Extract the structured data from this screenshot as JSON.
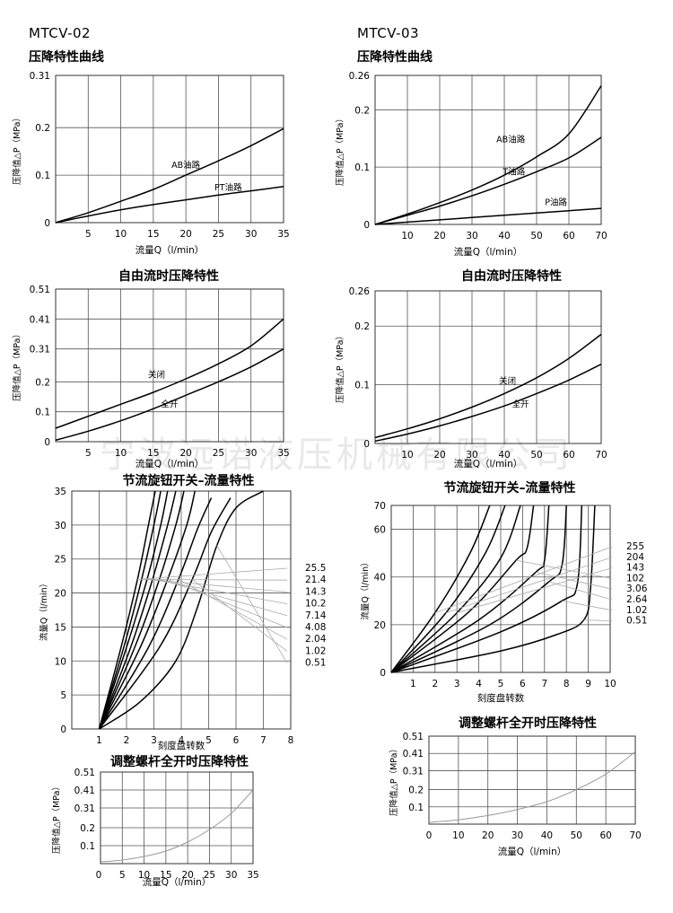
{
  "watermark": "宁波远诺液压机械有限公司",
  "chart_data": [
    {
      "id": "c1",
      "type": "line",
      "model": "MTCV-02",
      "title": "压降特性曲线",
      "xlabel": "流量Q（l/min）",
      "ylabel": "压降值△P（MPa）",
      "xlim": [
        0,
        35
      ],
      "ylim": [
        0,
        0.31
      ],
      "xticks": [
        5,
        10,
        15,
        20,
        25,
        30,
        35
      ],
      "yticks": [
        0,
        0.1,
        0.2,
        0.31
      ],
      "ytick_labels": [
        "0",
        "0.1",
        "0.2",
        "0.31"
      ],
      "grid": true,
      "series": [
        {
          "name": "AB油路",
          "points": [
            [
              0,
              0
            ],
            [
              5,
              0.021
            ],
            [
              10,
              0.045
            ],
            [
              15,
              0.07
            ],
            [
              20,
              0.1
            ],
            [
              25,
              0.13
            ],
            [
              30,
              0.162
            ],
            [
              35,
              0.198
            ]
          ],
          "label_at": [
            20,
            0.115
          ]
        },
        {
          "name": "PT油路",
          "points": [
            [
              0,
              0
            ],
            [
              5,
              0.014
            ],
            [
              10,
              0.027
            ],
            [
              15,
              0.038
            ],
            [
              20,
              0.048
            ],
            [
              25,
              0.058
            ],
            [
              30,
              0.067
            ],
            [
              35,
              0.076
            ]
          ],
          "label_at": [
            26.5,
            0.068
          ]
        }
      ]
    },
    {
      "id": "c2",
      "type": "line",
      "model": "MTCV-03",
      "title": "压降特性曲线",
      "xlabel": "流量Q（l/min）",
      "ylabel": "压降值△P（MPa）",
      "xlim": [
        0,
        70
      ],
      "ylim": [
        0,
        0.26
      ],
      "xticks": [
        10,
        20,
        30,
        40,
        50,
        60,
        70
      ],
      "yticks": [
        0,
        0.1,
        0.2,
        0.26
      ],
      "ytick_labels": [
        "0",
        "0.1",
        "0.2",
        "0.26"
      ],
      "grid": true,
      "series": [
        {
          "name": "AB油路",
          "points": [
            [
              0,
              0
            ],
            [
              10,
              0.018
            ],
            [
              20,
              0.038
            ],
            [
              30,
              0.06
            ],
            [
              40,
              0.086
            ],
            [
              50,
              0.118
            ],
            [
              60,
              0.158
            ],
            [
              70,
              0.242
            ]
          ],
          "label_at": [
            42,
            0.143
          ]
        },
        {
          "name": "T油路",
          "points": [
            [
              0,
              0
            ],
            [
              10,
              0.016
            ],
            [
              20,
              0.032
            ],
            [
              30,
              0.05
            ],
            [
              40,
              0.07
            ],
            [
              50,
              0.092
            ],
            [
              60,
              0.116
            ],
            [
              70,
              0.152
            ]
          ],
          "label_at": [
            43,
            0.087
          ]
        },
        {
          "name": "P油路",
          "points": [
            [
              0,
              0
            ],
            [
              10,
              0.004
            ],
            [
              20,
              0.008
            ],
            [
              30,
              0.012
            ],
            [
              40,
              0.016
            ],
            [
              50,
              0.02
            ],
            [
              60,
              0.024
            ],
            [
              70,
              0.028
            ]
          ],
          "label_at": [
            56,
            0.034
          ]
        }
      ]
    },
    {
      "id": "c3",
      "type": "line",
      "title": "自由流时压降特性",
      "xlabel": "流量Q（l/min）",
      "ylabel": "压降值△P（MPa）",
      "xlim": [
        0,
        35
      ],
      "ylim": [
        0,
        0.51
      ],
      "xticks": [
        5,
        10,
        15,
        20,
        25,
        30,
        35
      ],
      "yticks": [
        0,
        0.1,
        0.2,
        0.31,
        0.41,
        0.51
      ],
      "ytick_labels": [
        "0",
        "0.1",
        "0.2",
        "0.31",
        "0.41",
        "0.51"
      ],
      "grid": true,
      "series": [
        {
          "name": "关闭",
          "points": [
            [
              0,
              0.045
            ],
            [
              5,
              0.085
            ],
            [
              10,
              0.125
            ],
            [
              15,
              0.165
            ],
            [
              20,
              0.21
            ],
            [
              25,
              0.26
            ],
            [
              30,
              0.32
            ],
            [
              35,
              0.41
            ]
          ],
          "label_at": [
            15.5,
            0.215
          ]
        },
        {
          "name": "全开",
          "points": [
            [
              0,
              0.005
            ],
            [
              5,
              0.035
            ],
            [
              10,
              0.07
            ],
            [
              15,
              0.11
            ],
            [
              20,
              0.155
            ],
            [
              25,
              0.2
            ],
            [
              30,
              0.25
            ],
            [
              35,
              0.31
            ]
          ],
          "label_at": [
            17.5,
            0.115
          ]
        }
      ]
    },
    {
      "id": "c4",
      "type": "line",
      "title": "自由流时压降特性",
      "xlabel": "流量Q（l/min）",
      "ylabel": "压降值△P（MPa）",
      "xlim": [
        0,
        70
      ],
      "ylim": [
        0,
        0.26
      ],
      "xticks": [
        10,
        20,
        30,
        40,
        50,
        60,
        70
      ],
      "yticks": [
        0,
        0.1,
        0.2,
        0.26
      ],
      "ytick_labels": [
        "0",
        "0.1",
        "0.2",
        "0.26"
      ],
      "grid": true,
      "series": [
        {
          "name": "关闭",
          "points": [
            [
              0,
              0.01
            ],
            [
              10,
              0.025
            ],
            [
              20,
              0.042
            ],
            [
              30,
              0.062
            ],
            [
              40,
              0.085
            ],
            [
              50,
              0.112
            ],
            [
              60,
              0.145
            ],
            [
              70,
              0.186
            ]
          ],
          "label_at": [
            41,
            0.102
          ]
        },
        {
          "name": "全开",
          "points": [
            [
              0,
              0.004
            ],
            [
              10,
              0.016
            ],
            [
              20,
              0.03
            ],
            [
              30,
              0.046
            ],
            [
              40,
              0.064
            ],
            [
              50,
              0.085
            ],
            [
              60,
              0.108
            ],
            [
              70,
              0.135
            ]
          ],
          "label_at": [
            45,
            0.062
          ]
        }
      ]
    },
    {
      "id": "c5",
      "type": "line",
      "title": "节流旋钮开关–流量特性",
      "xlabel": "刻度盘转数",
      "ylabel": "流量Q（l/min）",
      "xlim": [
        0,
        8
      ],
      "ylim": [
        0,
        35
      ],
      "xticks": [
        1,
        2,
        3,
        4,
        5,
        6,
        7,
        8
      ],
      "yticks": [
        0,
        5,
        10,
        15,
        20,
        25,
        30,
        35
      ],
      "grid": true,
      "legend_labels": [
        "25.5",
        "21.4",
        "14.3",
        "10.2",
        "7.14",
        "4.08",
        "2.04",
        "1.02",
        "0.51"
      ],
      "series": [
        {
          "name": "25.5",
          "points": [
            [
              1,
              0
            ],
            [
              1.8,
              12
            ],
            [
              2.4,
              22
            ],
            [
              2.8,
              30
            ],
            [
              3.05,
              35
            ]
          ]
        },
        {
          "name": "21.4",
          "points": [
            [
              1,
              0
            ],
            [
              1.9,
              12
            ],
            [
              2.55,
              22
            ],
            [
              3.0,
              30
            ],
            [
              3.25,
              35
            ]
          ]
        },
        {
          "name": "14.3",
          "points": [
            [
              1,
              0
            ],
            [
              2.0,
              12
            ],
            [
              2.75,
              22
            ],
            [
              3.25,
              30
            ],
            [
              3.5,
              35
            ]
          ]
        },
        {
          "name": "10.2",
          "points": [
            [
              1,
              0
            ],
            [
              2.15,
              12
            ],
            [
              2.95,
              22
            ],
            [
              3.5,
              30
            ],
            [
              3.8,
              35
            ]
          ]
        },
        {
          "name": "7.14",
          "points": [
            [
              1,
              0
            ],
            [
              2.3,
              12
            ],
            [
              3.2,
              22
            ],
            [
              3.8,
              30
            ],
            [
              4.1,
              35
            ]
          ]
        },
        {
          "name": "4.08",
          "points": [
            [
              1,
              0
            ],
            [
              2.5,
              12
            ],
            [
              3.5,
              22
            ],
            [
              4.2,
              30
            ],
            [
              4.5,
              35
            ]
          ]
        },
        {
          "name": "2.04",
          "points": [
            [
              1,
              0
            ],
            [
              2.8,
              12
            ],
            [
              3.9,
              22
            ],
            [
              4.6,
              29.5
            ],
            [
              5.1,
              34
            ]
          ]
        },
        {
          "name": "1.02",
          "points": [
            [
              1,
              0
            ],
            [
              3.2,
              12
            ],
            [
              4.4,
              22
            ],
            [
              5.1,
              29
            ],
            [
              5.8,
              34
            ]
          ]
        },
        {
          "name": "0.51",
          "points": [
            [
              1,
              0
            ],
            [
              2.5,
              4
            ],
            [
              3.8,
              10
            ],
            [
              4.6,
              18
            ],
            [
              5.3,
              27
            ],
            [
              6.0,
              32.5
            ],
            [
              7.0,
              35
            ]
          ]
        }
      ]
    },
    {
      "id": "c6",
      "type": "line",
      "title": "节流旋钮开关–流量特性",
      "xlabel": "刻度盘转数",
      "ylabel": "流量Q（l/min）",
      "xlim": [
        0,
        10
      ],
      "ylim": [
        0,
        70
      ],
      "xticks": [
        1,
        2,
        3,
        4,
        5,
        6,
        7,
        8,
        9,
        10
      ],
      "yticks": [
        0,
        20,
        40,
        60,
        70
      ],
      "grid": true,
      "legend_labels": [
        "255",
        "204",
        "143",
        "102",
        "3.06",
        "2.64",
        "1.02",
        "0.51"
      ],
      "series": [
        {
          "name": "255",
          "points": [
            [
              0,
              0
            ],
            [
              2,
              25
            ],
            [
              3.6,
              50
            ],
            [
              4.5,
              70
            ]
          ]
        },
        {
          "name": "204",
          "points": [
            [
              0,
              0
            ],
            [
              2.5,
              25
            ],
            [
              4.3,
              50
            ],
            [
              5.2,
              70
            ]
          ]
        },
        {
          "name": "143",
          "points": [
            [
              0,
              0
            ],
            [
              3,
              25
            ],
            [
              5.0,
              48
            ],
            [
              5.9,
              70
            ]
          ]
        },
        {
          "name": "102",
          "points": [
            [
              0,
              0
            ],
            [
              3.5,
              25
            ],
            [
              5.7,
              47
            ],
            [
              6.2,
              52
            ],
            [
              6.5,
              70
            ]
          ]
        },
        {
          "name": "3.06",
          "points": [
            [
              0,
              0
            ],
            [
              4,
              22
            ],
            [
              6.6,
              42
            ],
            [
              7.0,
              47
            ],
            [
              7.2,
              70
            ]
          ]
        },
        {
          "name": "2.64",
          "points": [
            [
              0,
              0
            ],
            [
              4.5,
              20
            ],
            [
              7.2,
              38
            ],
            [
              7.8,
              45
            ],
            [
              8.0,
              70
            ]
          ]
        },
        {
          "name": "1.02",
          "points": [
            [
              0,
              0
            ],
            [
              5,
              17
            ],
            [
              7.8,
              30
            ],
            [
              8.5,
              37
            ],
            [
              8.7,
              70
            ]
          ]
        },
        {
          "name": "0.51",
          "points": [
            [
              0,
              0
            ],
            [
              5,
              9
            ],
            [
              7.6,
              16
            ],
            [
              8.8,
              22
            ],
            [
              9.1,
              35
            ],
            [
              9.3,
              70
            ]
          ]
        }
      ]
    },
    {
      "id": "c7",
      "type": "line",
      "title": "调整螺杆全开时压降特性",
      "xlabel": "流量Q（l/min）",
      "ylabel": "压降值△P（MPa）",
      "xlim": [
        0,
        35
      ],
      "ylim": [
        0,
        0.51
      ],
      "xticks": [
        5,
        10,
        15,
        20,
        25,
        30,
        35
      ],
      "yticks": [
        0.1,
        0.2,
        0.31,
        0.41,
        0.51
      ],
      "ytick_labels": [
        "0.1",
        "0.2",
        "0.31",
        "0.41",
        "0.51"
      ],
      "extra_xtick_label": "0",
      "grid": true,
      "series": [
        {
          "points": [
            [
              0,
              0.01
            ],
            [
              5,
              0.02
            ],
            [
              10,
              0.04
            ],
            [
              15,
              0.07
            ],
            [
              20,
              0.12
            ],
            [
              25,
              0.19
            ],
            [
              30,
              0.28
            ],
            [
              35,
              0.41
            ]
          ]
        }
      ]
    },
    {
      "id": "c8",
      "type": "line",
      "title": "调整螺杆全开时压降特性",
      "xlabel": "流量Q（l/min）",
      "ylabel": "压降值△P（MPa）",
      "xlim": [
        0,
        70
      ],
      "ylim": [
        0,
        0.51
      ],
      "xticks": [
        0,
        10,
        20,
        30,
        40,
        50,
        60,
        70
      ],
      "yticks": [
        0.1,
        0.2,
        0.31,
        0.41,
        0.51
      ],
      "ytick_labels": [
        "0.1",
        "0.2",
        "0.31",
        "0.41",
        "0.51"
      ],
      "grid": true,
      "series": [
        {
          "points": [
            [
              0,
              0.01
            ],
            [
              10,
              0.025
            ],
            [
              20,
              0.05
            ],
            [
              30,
              0.085
            ],
            [
              40,
              0.13
            ],
            [
              50,
              0.2
            ],
            [
              60,
              0.29
            ],
            [
              70,
              0.42
            ]
          ]
        }
      ]
    }
  ]
}
